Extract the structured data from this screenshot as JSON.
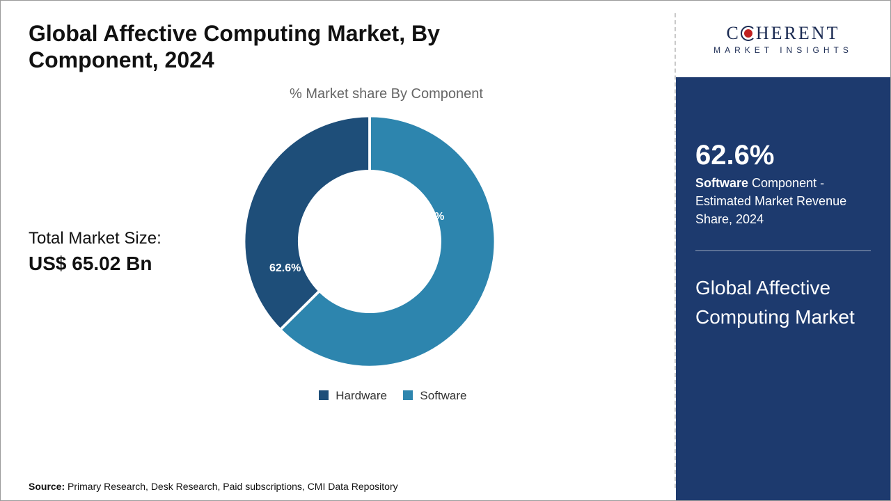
{
  "title": "Global Affective Computing Market, By Component, 2024",
  "chart": {
    "subtitle": "% Market share By Component",
    "type": "donut",
    "segments": [
      {
        "name": "Software",
        "value": 62.6,
        "label": "62.6%",
        "color": "#2d85ae"
      },
      {
        "name": "Hardware",
        "value": 37.4,
        "label": "xx.x%",
        "color": "#1e4e79"
      }
    ],
    "inner_radius_pct": 56,
    "start_angle_deg": 0,
    "gap_color": "#ffffff",
    "gap_width": 2,
    "background_color": "#ffffff"
  },
  "market_size": {
    "label": "Total Market Size:",
    "value": "US$ 65.02 Bn"
  },
  "legend": {
    "items": [
      {
        "label": "Hardware",
        "color": "#1e4e79"
      },
      {
        "label": "Software",
        "color": "#2d85ae"
      }
    ]
  },
  "source": {
    "prefix": "Source:",
    "text": "Primary Research, Desk Research, Paid subscriptions, CMI Data Repository"
  },
  "logo": {
    "main_pre": "C",
    "main_post": "HERENT",
    "sub": "MARKET INSIGHTS"
  },
  "sidebar": {
    "bg_color": "#1d3a6e",
    "stat_value": "62.6%",
    "stat_bold": "Software",
    "stat_rest": " Component - Estimated Market Revenue Share, 2024",
    "panel_title": "Global Affective Computing Market"
  }
}
